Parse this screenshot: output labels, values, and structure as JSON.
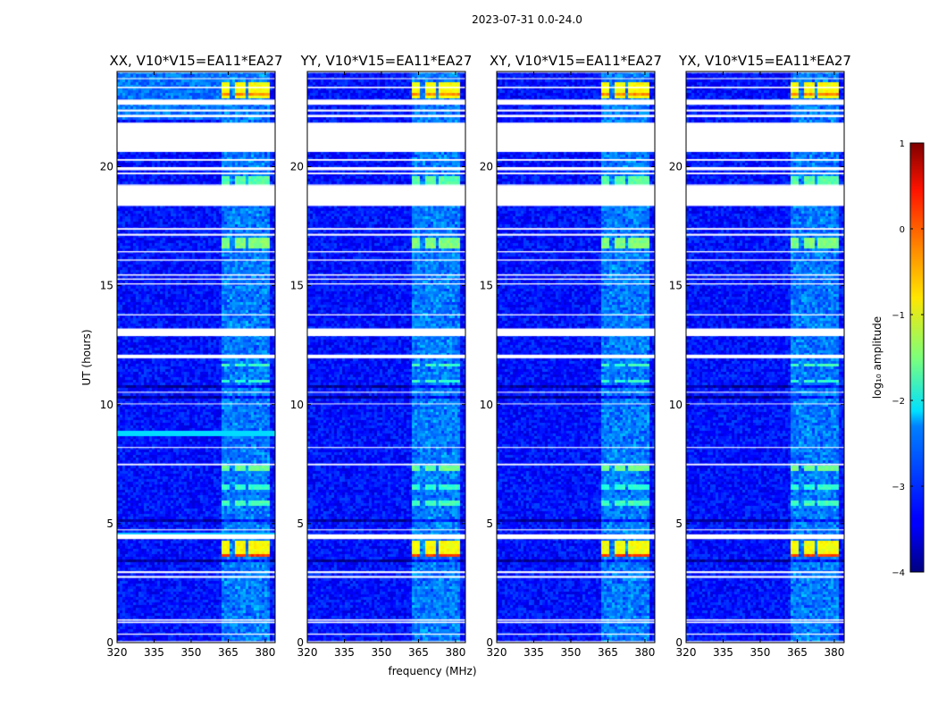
{
  "figure": {
    "suptitle": "2023-07-31 0.0-24.0",
    "ylabel": "UT (hours)",
    "xlabel": "frequency (MHz)"
  },
  "chart_data": {
    "type": "heatmap",
    "x_ticks": [
      320,
      335,
      350,
      365,
      380
    ],
    "x_range": [
      320,
      384
    ],
    "y_ticks": [
      0,
      5,
      10,
      15,
      20
    ],
    "y_range": [
      0,
      24
    ],
    "panels": [
      {
        "title": "XX, V10*V15=EA11*EA27",
        "vertical_stripe": true
      },
      {
        "title": "YY, V10*V15=EA11*EA27",
        "vertical_stripe": false
      },
      {
        "title": "XY, V10*V15=EA11*EA27",
        "vertical_stripe": false
      },
      {
        "title": "YX, V10*V15=EA11*EA27",
        "vertical_stripe": false
      }
    ],
    "rfi_band_centers_mhz": [
      364,
      370,
      375,
      380
    ],
    "rfi_band_width_mhz": 4.2,
    "white_gaps_hours": [
      [
        0.0,
        0.06
      ],
      [
        0.33,
        0.38
      ],
      [
        0.82,
        0.88
      ],
      [
        0.92,
        0.98
      ],
      [
        2.72,
        2.8
      ],
      [
        2.92,
        3.0
      ],
      [
        4.35,
        4.55
      ],
      [
        4.72,
        4.76
      ],
      [
        7.45,
        7.52
      ],
      [
        8.18,
        8.22
      ],
      [
        10.02,
        10.05
      ],
      [
        10.5,
        10.54
      ],
      [
        11.95,
        12.1
      ],
      [
        12.88,
        13.2
      ],
      [
        13.75,
        13.8
      ],
      [
        15.05,
        15.1
      ],
      [
        15.25,
        15.3
      ],
      [
        15.42,
        15.48
      ],
      [
        16.05,
        16.1
      ],
      [
        16.4,
        16.45
      ],
      [
        17.1,
        17.18
      ],
      [
        17.35,
        17.42
      ],
      [
        18.35,
        19.2
      ],
      [
        19.2,
        19.25
      ],
      [
        19.68,
        19.75
      ],
      [
        19.85,
        19.98
      ],
      [
        20.25,
        20.32
      ],
      [
        20.62,
        21.85
      ],
      [
        22.08,
        22.18
      ],
      [
        22.32,
        22.4
      ],
      [
        22.6,
        22.82
      ],
      [
        23.3,
        23.36
      ],
      [
        23.68,
        23.72
      ],
      [
        23.95,
        24.0
      ]
    ],
    "dark_lines_hours": [
      [
        2.48,
        2.52
      ],
      [
        3.42,
        3.46
      ],
      [
        5.12,
        5.16
      ],
      [
        5.3,
        5.34
      ],
      [
        7.08,
        7.12
      ],
      [
        9.58,
        9.62
      ],
      [
        10.28,
        10.32
      ],
      [
        10.75,
        10.78
      ],
      [
        11.22,
        11.27
      ],
      [
        11.58,
        11.62
      ],
      [
        14.08,
        14.12
      ],
      [
        14.38,
        14.42
      ],
      [
        17.88,
        17.92
      ]
    ],
    "bright_events": [
      {
        "t0": 3.55,
        "t1": 3.75,
        "level": 0.1
      },
      {
        "t0": 3.75,
        "t1": 4.25,
        "level": -0.9
      },
      {
        "t0": 7.25,
        "t1": 7.4,
        "level": -1.6
      },
      {
        "t0": 5.8,
        "t1": 6.0,
        "level": -1.8
      },
      {
        "t0": 6.45,
        "t1": 6.6,
        "level": -1.9
      },
      {
        "t0": 10.9,
        "t1": 11.05,
        "level": -1.9
      },
      {
        "t0": 11.55,
        "t1": 11.7,
        "level": -1.8
      },
      {
        "t0": 16.6,
        "t1": 17.05,
        "level": -1.5
      },
      {
        "t0": 19.0,
        "t1": 19.6,
        "level": -1.7
      },
      {
        "t0": 22.85,
        "t1": 23.6,
        "level": -0.9
      },
      {
        "t0": 22.95,
        "t1": 23.1,
        "level": -0.3
      }
    ],
    "colorbar": {
      "label": "log₁₀ amplitude",
      "range": [
        -4,
        1
      ],
      "ticks": [
        1,
        0,
        -1,
        -2,
        -3,
        -4
      ],
      "tick_labels": [
        "1",
        "0",
        "−1",
        "−2",
        "−3",
        "−4"
      ]
    }
  }
}
